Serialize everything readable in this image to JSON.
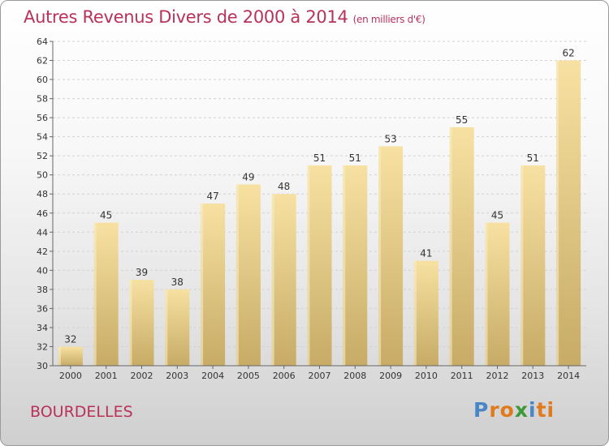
{
  "header": {
    "title": "Autres Revenus Divers de 2000 à 2014",
    "unit": "(en milliers d'€)"
  },
  "commune": "BOURDELLES",
  "logo": {
    "letters": [
      "P",
      "r",
      "o",
      "x",
      "i",
      "ti"
    ]
  },
  "colors": {
    "bar_light": "#f5dc9a",
    "bar_dark": "#c8ad69",
    "title": "#b8325a"
  },
  "chart_data": {
    "type": "bar",
    "title": "Autres Revenus Divers de 2000 à 2014",
    "categories": [
      "2000",
      "2001",
      "2002",
      "2003",
      "2004",
      "2005",
      "2006",
      "2007",
      "2008",
      "2009",
      "2010",
      "2011",
      "2012",
      "2013",
      "2014"
    ],
    "values": [
      32,
      45,
      39,
      38,
      47,
      49,
      48,
      51,
      51,
      53,
      41,
      55,
      45,
      51,
      62
    ],
    "ylim": [
      30,
      64
    ],
    "yticks": [
      30,
      32,
      34,
      36,
      38,
      40,
      42,
      44,
      46,
      48,
      50,
      52,
      54,
      56,
      58,
      60,
      62,
      64
    ],
    "xlabel": "",
    "ylabel": "",
    "grid": true,
    "legend": "none"
  }
}
